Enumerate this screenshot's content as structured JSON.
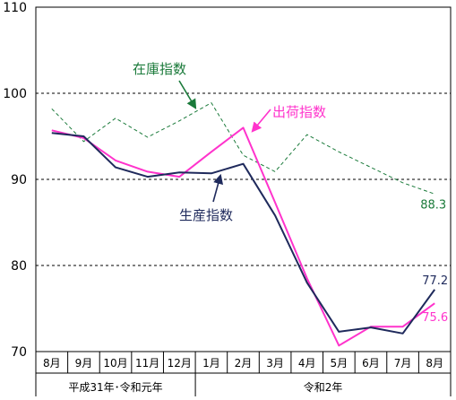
{
  "chart_data": {
    "type": "line",
    "title": "",
    "xlabel": "",
    "ylabel": "",
    "ylim": [
      70,
      110
    ],
    "yticks": [
      70,
      80,
      90,
      100,
      110
    ],
    "grid": {
      "y_dashed_at": [
        80,
        90,
        100
      ]
    },
    "categories": [
      "8月",
      "9月",
      "10月",
      "11月",
      "12月",
      "1月",
      "2月",
      "3月",
      "4月",
      "5月",
      "6月",
      "7月",
      "8月"
    ],
    "year_groups": [
      {
        "label": "平成31年･令和元年",
        "start": 0,
        "end": 4
      },
      {
        "label": "令和2年",
        "start": 5,
        "end": 12
      }
    ],
    "series": [
      {
        "name": "生産指数",
        "color": "#1f2a5c",
        "style": "solid",
        "values": [
          95.4,
          95.0,
          91.4,
          90.3,
          90.8,
          90.7,
          91.8,
          85.8,
          78.0,
          72.3,
          72.8,
          72.1,
          77.2
        ],
        "end_label": "77.2"
      },
      {
        "name": "出荷指数",
        "color": "#ff33cc",
        "style": "solid",
        "values": [
          95.7,
          94.8,
          92.2,
          90.9,
          90.3,
          93.2,
          96.0,
          87.3,
          78.5,
          70.7,
          72.9,
          72.9,
          75.6
        ],
        "end_label": "75.6"
      },
      {
        "name": "在庫指数",
        "color": "#1a7a3a",
        "style": "dashed",
        "values": [
          98.2,
          94.4,
          97.1,
          94.9,
          96.8,
          98.9,
          92.8,
          90.9,
          95.2,
          93.2,
          91.4,
          89.6,
          88.3
        ],
        "end_label": "88.3"
      }
    ]
  }
}
